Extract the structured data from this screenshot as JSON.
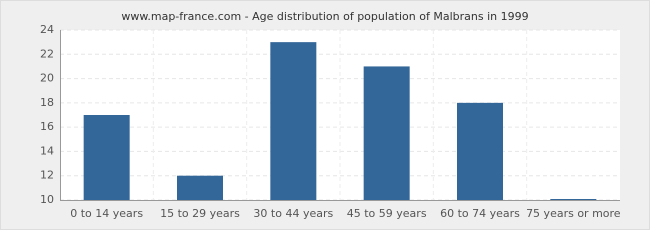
{
  "chart_data": {
    "type": "bar",
    "title": "www.map-france.com - Age distribution of population of Malbrans in 1999",
    "categories": [
      "0 to 14 years",
      "15 to 29 years",
      "30 to 44 years",
      "45 to 59 years",
      "60 to 74 years",
      "75 years or more"
    ],
    "values": [
      17,
      12,
      23,
      21,
      18,
      10
    ],
    "color": "#336699",
    "ylim": [
      10,
      24
    ],
    "yticks": [
      10,
      12,
      14,
      16,
      18,
      20,
      22,
      24
    ],
    "grid": true
  }
}
